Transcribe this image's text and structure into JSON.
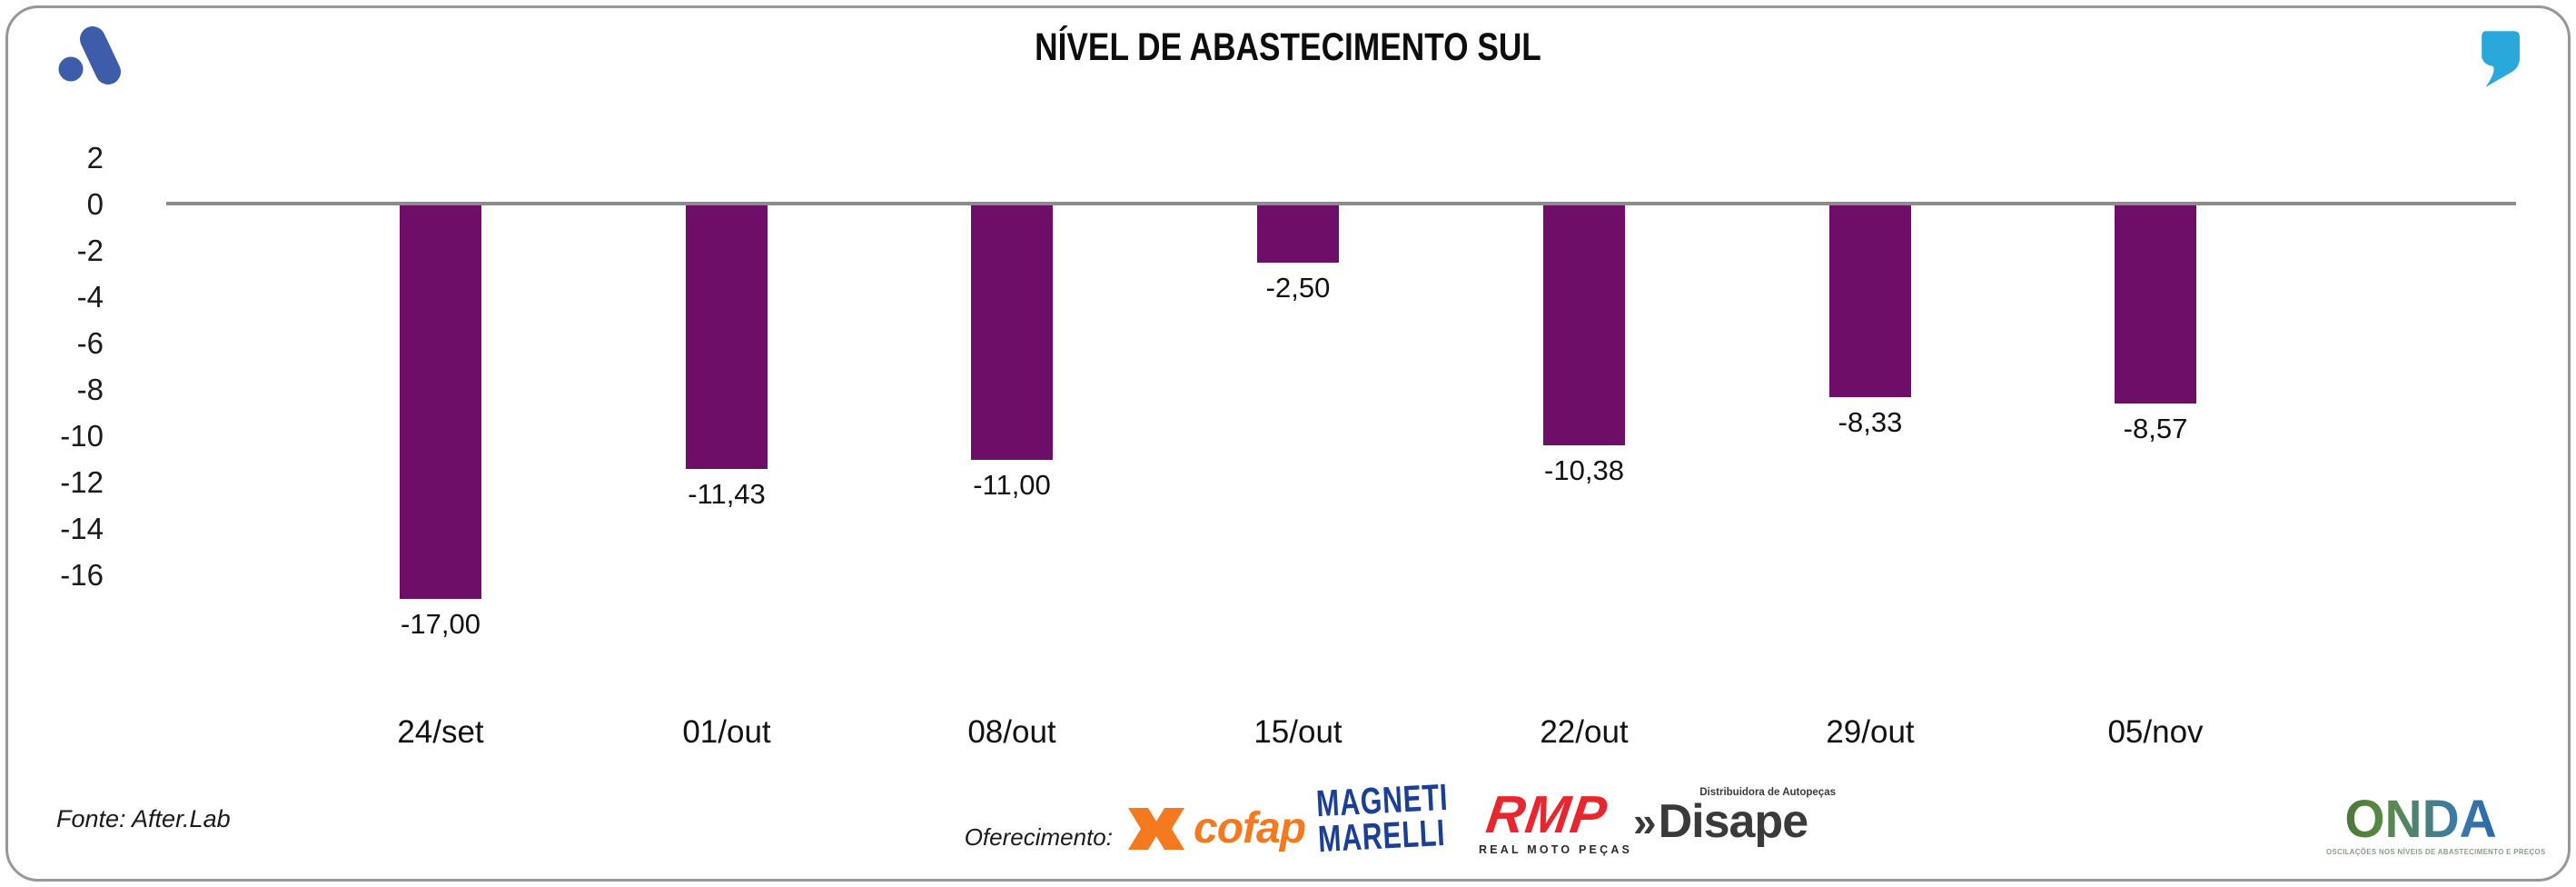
{
  "header": {
    "title": "NÍVEL DE ABASTECIMENTO SUL"
  },
  "chart_data": {
    "type": "bar",
    "title": "NÍVEL DE ABASTECIMENTO SUL",
    "categories": [
      "24/set",
      "01/out",
      "08/out",
      "15/out",
      "22/out",
      "29/out",
      "05/nov"
    ],
    "values": [
      -17.0,
      -11.43,
      -11.0,
      -2.5,
      -10.38,
      -8.33,
      -8.57
    ],
    "value_labels": [
      "-17,00",
      "-11,43",
      "-11,00",
      "-2,50",
      "-10,38",
      "-8,33",
      "-8,57"
    ],
    "y_ticks": [
      2,
      0,
      -2,
      -4,
      -6,
      -8,
      -10,
      -12,
      -14,
      -16
    ],
    "ylim": [
      -18,
      2.5
    ],
    "xlabel": "",
    "ylabel": "",
    "grid": false,
    "legend": "none",
    "bar_color": "#6E0E68",
    "axis_line_color": "#8c8c8c"
  },
  "footer": {
    "source": "Fonte: After.Lab",
    "sponsor_label": "Oferecimento:",
    "sponsors": {
      "cofap": {
        "text": "cofap",
        "color": "#F4791F"
      },
      "magneti": {
        "line1": "MAGNETI",
        "line2": "MARELLI",
        "color": "#1B3F94"
      },
      "rmp": {
        "text": "RMP",
        "subtext": "REAL MOTO PEÇAS",
        "color": "#E8262D"
      },
      "disape": {
        "chevron": "»",
        "text": "Disape",
        "subtext": "Distribuidora de Autopeças",
        "color": "#3a3a3a"
      }
    },
    "onda": {
      "text": "ONDA",
      "tagline": "OSCILAÇÕES NOS NÍVEIS DE ABASTECIMENTO E PREÇOS"
    }
  },
  "colors": {
    "bar": "#6E0E68",
    "axis_line": "#8c8c8c",
    "brand_blue": "#3D5CA9",
    "quote_teal": "#29A8DB",
    "card_border": "#97979a"
  }
}
